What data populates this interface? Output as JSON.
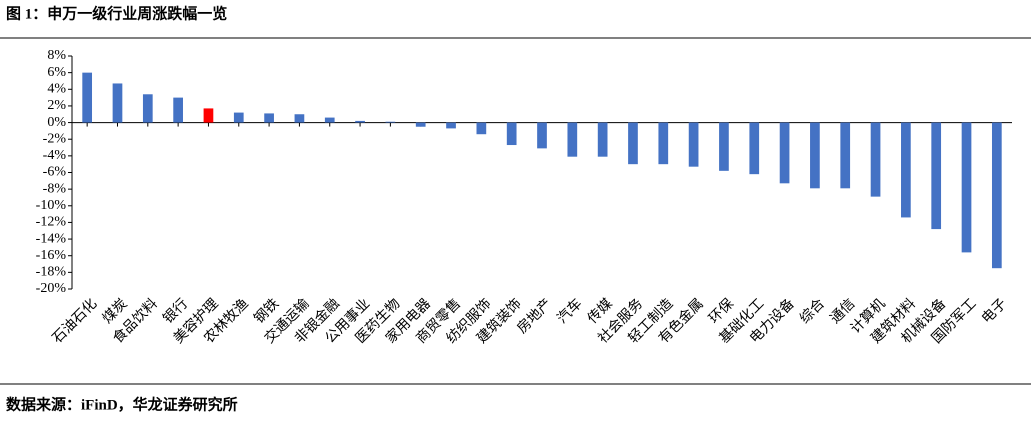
{
  "chart_data": {
    "type": "bar",
    "title": "图 1：申万一级行业周涨跌幅一览",
    "source": "数据来源：iFinD，华龙证券研究所",
    "categories": [
      "石油石化",
      "煤炭",
      "食品饮料",
      "银行",
      "美容护理",
      "农林牧渔",
      "钢铁",
      "交通运输",
      "非银金融",
      "公用事业",
      "医药生物",
      "家用电器",
      "商贸零售",
      "纺织服饰",
      "建筑装饰",
      "房地产",
      "汽车",
      "传媒",
      "社会服务",
      "轻工制造",
      "有色金属",
      "环保",
      "基础化工",
      "电力设备",
      "综合",
      "通信",
      "计算机",
      "建筑材料",
      "机械设备",
      "国防军工",
      "电子"
    ],
    "values": [
      6.0,
      4.7,
      3.4,
      3.0,
      1.7,
      1.2,
      1.1,
      1.0,
      0.6,
      0.2,
      0.1,
      -0.5,
      -0.7,
      -1.4,
      -2.7,
      -3.1,
      -4.1,
      -4.1,
      -5.0,
      -5.0,
      -5.3,
      -5.8,
      -6.2,
      -7.3,
      -7.9,
      -7.9,
      -8.9,
      -11.4,
      -12.8,
      -15.6,
      -17.5
    ],
    "colors": [
      "#4472c4",
      "#4472c4",
      "#4472c4",
      "#4472c4",
      "#ff0000",
      "#4472c4",
      "#4472c4",
      "#4472c4",
      "#4472c4",
      "#4472c4",
      "#4472c4",
      "#4472c4",
      "#4472c4",
      "#4472c4",
      "#4472c4",
      "#4472c4",
      "#4472c4",
      "#4472c4",
      "#4472c4",
      "#4472c4",
      "#4472c4",
      "#4472c4",
      "#4472c4",
      "#4472c4",
      "#4472c4",
      "#4472c4",
      "#4472c4",
      "#4472c4",
      "#4472c4",
      "#4472c4",
      "#4472c4"
    ],
    "ylim": [
      -20,
      8
    ],
    "yticks": [
      {
        "value": 8,
        "label": "8%"
      },
      {
        "value": 6,
        "label": "6%"
      },
      {
        "value": 4,
        "label": "4%"
      },
      {
        "value": 2,
        "label": "2%"
      },
      {
        "value": 0,
        "label": "0%"
      },
      {
        "value": -2,
        "label": "-2%"
      },
      {
        "value": -4,
        "label": "-4%"
      },
      {
        "value": -6,
        "label": "-6%"
      },
      {
        "value": -8,
        "label": "-8%"
      },
      {
        "value": -10,
        "label": "-10%"
      },
      {
        "value": -12,
        "label": "-12%"
      },
      {
        "value": -14,
        "label": "-14%"
      },
      {
        "value": -16,
        "label": "-16%"
      },
      {
        "value": -18,
        "label": "-18%"
      },
      {
        "value": -20,
        "label": "-20%"
      }
    ],
    "grid": false
  }
}
